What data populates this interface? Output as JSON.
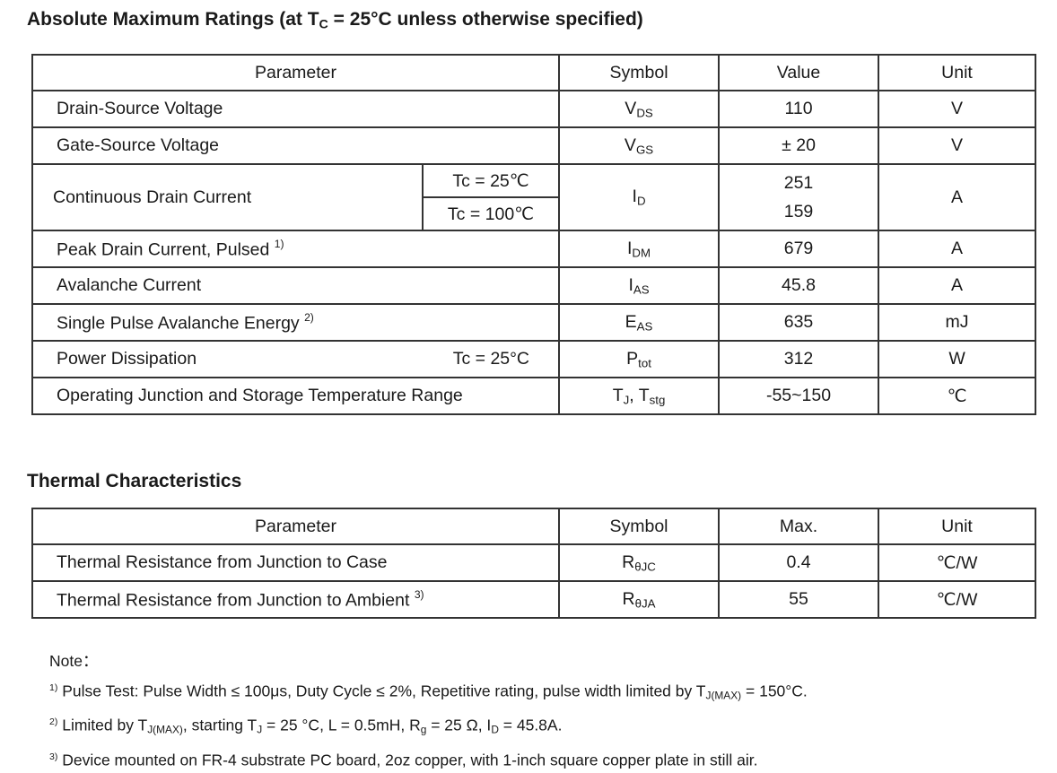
{
  "ratings": {
    "title": [
      {
        "t": "Absolute Maximum Ratings (at T"
      },
      {
        "t": "C",
        "sub": true
      },
      {
        "t": " = 25°C unless otherwise specified)"
      }
    ],
    "headers": [
      "Parameter",
      "Symbol",
      "Value",
      "Unit"
    ],
    "rows": [
      {
        "param": "Drain-Source Voltage",
        "symbol": "V",
        "symbol_sub": "DS",
        "value": "110",
        "unit": "V"
      },
      {
        "param": "Gate-Source Voltage",
        "symbol": "V",
        "symbol_sub": "GS",
        "value": "± 20",
        "unit": "V"
      },
      {
        "param": "Continuous Drain Current",
        "conditions": [
          "Tc = 25℃",
          "Tc = 100℃"
        ],
        "symbol": "I",
        "symbol_sub": "D",
        "values": [
          "251",
          "159"
        ],
        "unit": "A"
      },
      {
        "param": "Peak Drain Current, Pulsed",
        "note": "1)",
        "symbol": "I",
        "symbol_sub": "DM",
        "value": "679",
        "unit": "A"
      },
      {
        "param": "Avalanche Current",
        "symbol": "I",
        "symbol_sub": "AS",
        "value": "45.8",
        "unit": "A"
      },
      {
        "param": "Single Pulse Avalanche Energy",
        "note": "2)",
        "symbol": "E",
        "symbol_sub": "AS",
        "value": "635",
        "unit": "mJ"
      },
      {
        "param": "Power Dissipation",
        "condition": "Tc = 25°C",
        "symbol": "P",
        "symbol_sub": "tot",
        "value": "312",
        "unit": "W"
      },
      {
        "param": "Operating Junction and Storage Temperature Range",
        "symbol": "T",
        "symbol_sub": "J",
        "symbol2": ", T",
        "symbol2_sub": "stg",
        "value": "-55~150",
        "unit": "℃"
      }
    ]
  },
  "thermal": {
    "title": "Thermal Characteristics",
    "headers": [
      "Parameter",
      "Symbol",
      "Max.",
      "Unit"
    ],
    "rows": [
      {
        "param": "Thermal Resistance from Junction to Case",
        "symbol": "R",
        "symbol_sub": "θJC",
        "value": "0.4",
        "unit": "℃/W"
      },
      {
        "param": "Thermal Resistance from Junction to Ambient",
        "note": "3)",
        "symbol": "R",
        "symbol_sub": "θJA",
        "value": "55",
        "unit": "℃/W"
      }
    ]
  },
  "notes": {
    "label": "Note：",
    "items": [
      [
        {
          "t": "1)",
          "sup": true
        },
        {
          "t": " Pulse Test: Pulse Width ≤ 100μs, Duty Cycle ≤ 2%, Repetitive rating, pulse width limited by T"
        },
        {
          "t": "J(MAX)",
          "sub": true
        },
        {
          "t": " = 150°C."
        }
      ],
      [
        {
          "t": "2)",
          "sup": true
        },
        {
          "t": " Limited by T"
        },
        {
          "t": "J(MAX)",
          "sub": true
        },
        {
          "t": ", starting T"
        },
        {
          "t": "J",
          "sub": true
        },
        {
          "t": " = 25 °C, L = 0.5mH, R"
        },
        {
          "t": "g",
          "sub": true
        },
        {
          "t": " = 25 Ω, I"
        },
        {
          "t": "D",
          "sub": true
        },
        {
          "t": " = 45.8A."
        }
      ],
      [
        {
          "t": "3)",
          "sup": true
        },
        {
          "t": " Device mounted on FR-4 substrate PC board, 2oz copper, with 1-inch square copper plate in still air."
        }
      ]
    ]
  }
}
